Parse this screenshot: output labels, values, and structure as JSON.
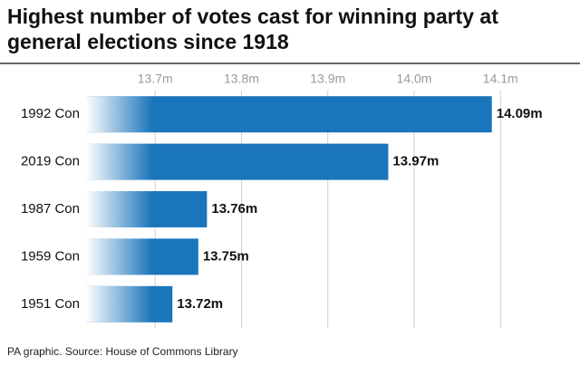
{
  "chart_data": {
    "type": "bar",
    "orientation": "horizontal",
    "title": "Highest number of votes cast for winning party at general elections since 1918",
    "source": "PA graphic. Source: House of Commons Library",
    "categories": [
      "1992 Con",
      "2019 Con",
      "1987 Con",
      "1959 Con",
      "1951 Con"
    ],
    "values": [
      14.09,
      13.97,
      13.76,
      13.75,
      13.72
    ],
    "value_labels": [
      "14.09m",
      "13.97m",
      "13.76m",
      "13.75m",
      "13.72m"
    ],
    "color": "#1b75bb",
    "xlim": [
      13.62,
      14.19
    ],
    "xticks": [
      {
        "value": 13.7,
        "label": "13.7m"
      },
      {
        "value": 13.8,
        "label": "13.8m"
      },
      {
        "value": 13.9,
        "label": "13.9m"
      },
      {
        "value": 14.0,
        "label": "14.0m"
      },
      {
        "value": 14.1,
        "label": "14.1m"
      }
    ],
    "grid": true
  }
}
